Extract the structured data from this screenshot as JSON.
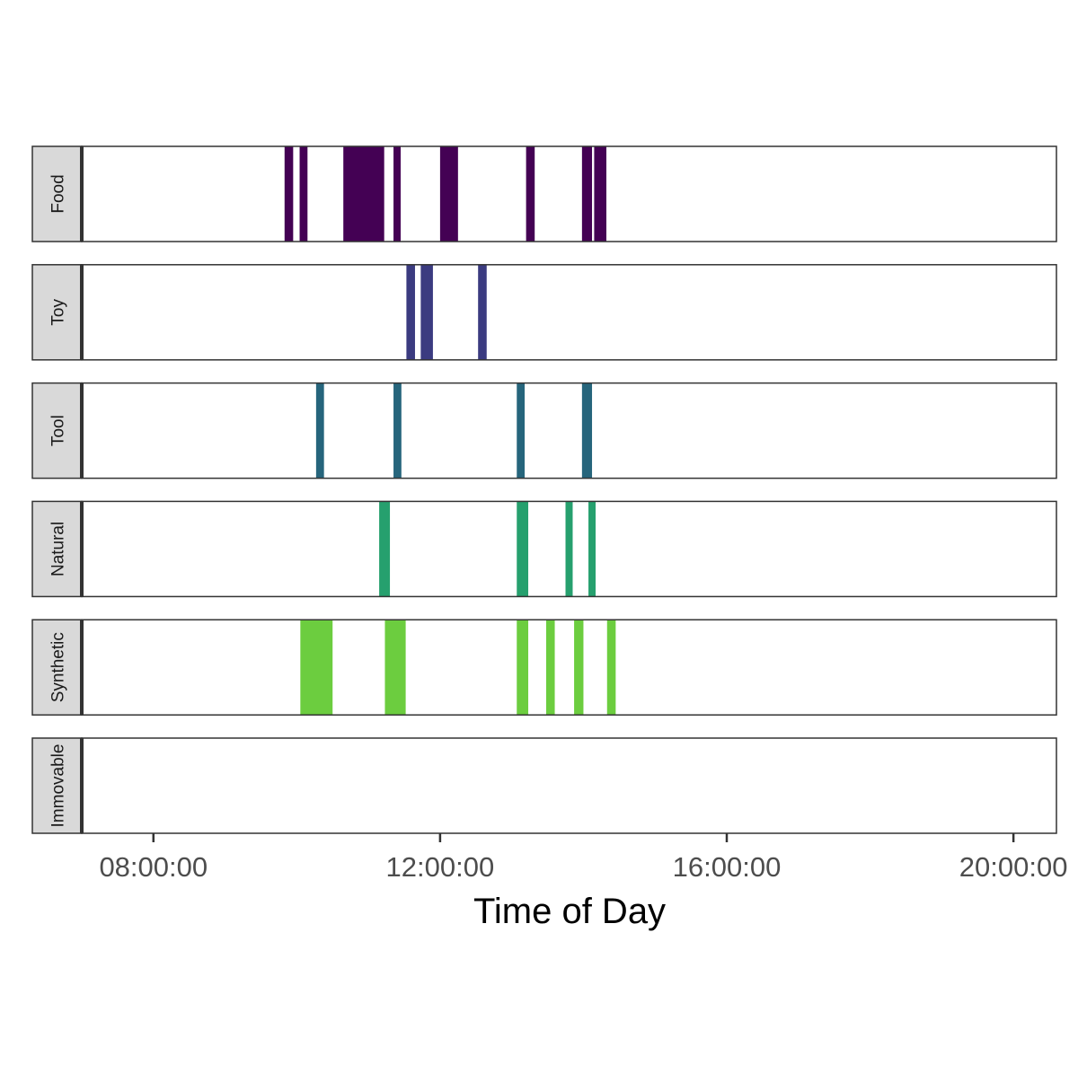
{
  "chart_data": {
    "type": "timeline",
    "title": "",
    "xlabel": "Time of Day",
    "ylabel": "",
    "x_unit": "hours since midnight",
    "xlim": [
      7.0,
      20.6
    ],
    "x_ticks": [
      {
        "value": 8,
        "label": "08:00:00"
      },
      {
        "value": 12,
        "label": "12:00:00"
      },
      {
        "value": 16,
        "label": "16:00:00"
      },
      {
        "value": 20,
        "label": "20:00:00"
      }
    ],
    "grid": false,
    "legend": "none",
    "panels": [
      {
        "label": "Food",
        "color": "#440154",
        "events": [
          [
            9.83,
            9.95
          ],
          [
            10.04,
            10.15
          ],
          [
            10.65,
            11.22
          ],
          [
            11.35,
            11.45
          ],
          [
            12.0,
            12.25
          ],
          [
            13.2,
            13.32
          ],
          [
            13.98,
            14.12
          ],
          [
            14.15,
            14.32
          ]
        ]
      },
      {
        "label": "Toy",
        "color": "#3b3b80",
        "events": [
          [
            11.53,
            11.65
          ],
          [
            11.73,
            11.9
          ],
          [
            12.53,
            12.65
          ]
        ]
      },
      {
        "label": "Tool",
        "color": "#26657c",
        "events": [
          [
            10.27,
            10.38
          ],
          [
            11.35,
            11.46
          ],
          [
            13.07,
            13.18
          ],
          [
            13.98,
            14.12
          ]
        ]
      },
      {
        "label": "Natural",
        "color": "#26a06e",
        "events": [
          [
            11.15,
            11.3
          ],
          [
            13.07,
            13.23
          ],
          [
            13.75,
            13.85
          ],
          [
            14.07,
            14.17
          ]
        ]
      },
      {
        "label": "Synthetic",
        "color": "#6ccd3f",
        "events": [
          [
            10.05,
            10.5
          ],
          [
            11.23,
            11.52
          ],
          [
            13.07,
            13.23
          ],
          [
            13.48,
            13.6
          ],
          [
            13.87,
            14.0
          ],
          [
            14.33,
            14.45
          ]
        ]
      },
      {
        "label": "Immovable",
        "color": "#bddf26",
        "events": []
      }
    ]
  }
}
